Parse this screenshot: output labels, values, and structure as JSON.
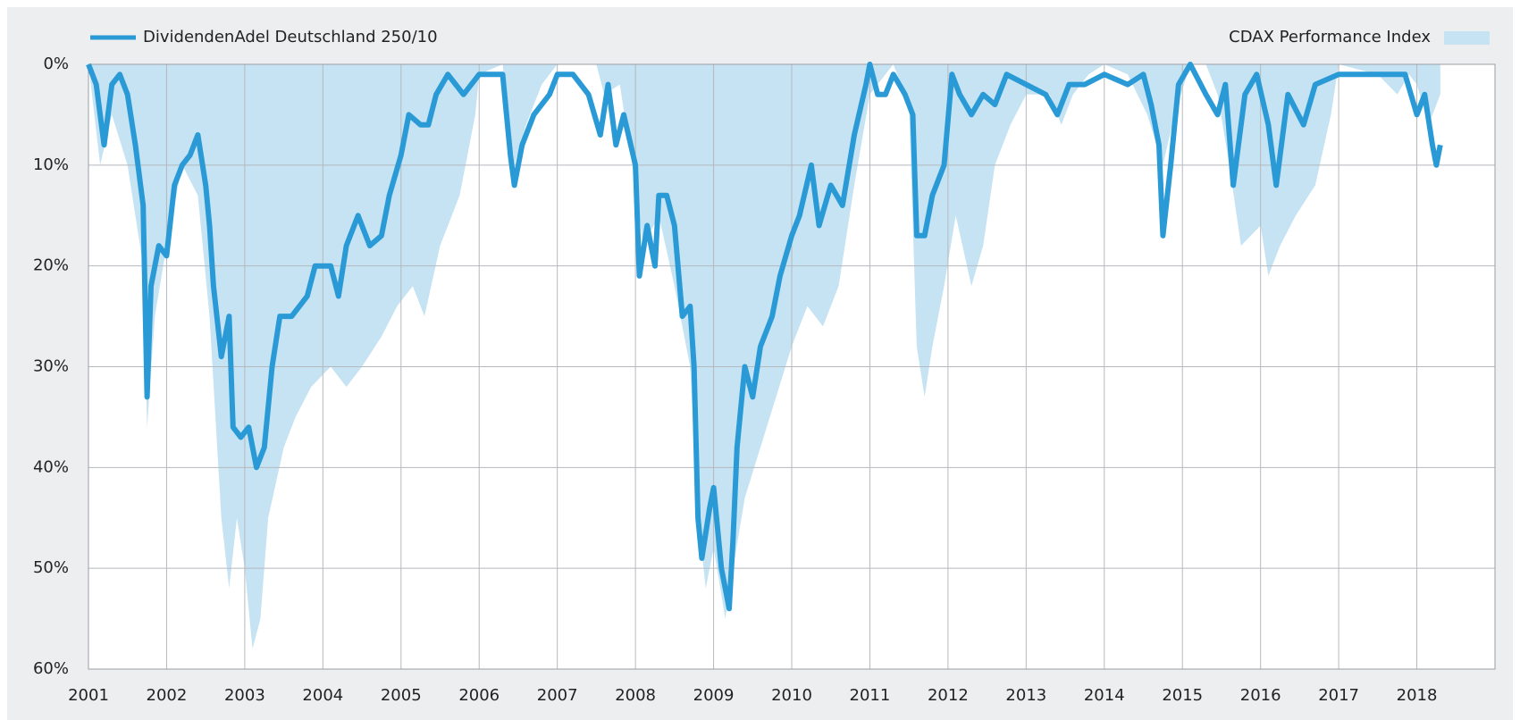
{
  "chart_data": {
    "type": "drawdown",
    "y_inverted": true,
    "grid": true,
    "xlim": [
      2001,
      2019
    ],
    "xticks": [
      2001,
      2002,
      2003,
      2004,
      2005,
      2006,
      2007,
      2008,
      2009,
      2010,
      2011,
      2012,
      2013,
      2014,
      2015,
      2016,
      2017,
      2018
    ],
    "ylim": [
      0,
      60
    ],
    "yticks": [
      {
        "value": 0,
        "label": "0%"
      },
      {
        "value": 10,
        "label": "10%"
      },
      {
        "value": 20,
        "label": "20%"
      },
      {
        "value": 30,
        "label": "30%"
      },
      {
        "value": 40,
        "label": "40%"
      },
      {
        "value": 50,
        "label": "50%"
      },
      {
        "value": 60,
        "label": "60%"
      }
    ],
    "series": [
      {
        "name": "DividendenAdel Deutschland 250/10",
        "kind": "line",
        "color": "#2a9ad6",
        "x": [
          2001.0,
          2001.1,
          2001.2,
          2001.3,
          2001.4,
          2001.5,
          2001.6,
          2001.7,
          2001.75,
          2001.8,
          2001.9,
          2002.0,
          2002.1,
          2002.2,
          2002.3,
          2002.4,
          2002.5,
          2002.55,
          2002.6,
          2002.7,
          2002.8,
          2002.85,
          2002.95,
          2003.05,
          2003.15,
          2003.25,
          2003.35,
          2003.45,
          2003.6,
          2003.8,
          2003.9,
          2004.1,
          2004.2,
          2004.3,
          2004.45,
          2004.6,
          2004.75,
          2004.85,
          2005.0,
          2005.1,
          2005.25,
          2005.35,
          2005.45,
          2005.6,
          2005.8,
          2006.0,
          2006.2,
          2006.3,
          2006.4,
          2006.45,
          2006.55,
          2006.7,
          2006.9,
          2007.0,
          2007.2,
          2007.4,
          2007.55,
          2007.65,
          2007.75,
          2007.85,
          2008.0,
          2008.05,
          2008.15,
          2008.25,
          2008.3,
          2008.4,
          2008.5,
          2008.6,
          2008.7,
          2008.75,
          2008.8,
          2008.85,
          2008.95,
          2009.0,
          2009.1,
          2009.2,
          2009.25,
          2009.3,
          2009.4,
          2009.5,
          2009.6,
          2009.75,
          2009.85,
          2010.0,
          2010.1,
          2010.25,
          2010.35,
          2010.5,
          2010.65,
          2010.8,
          2010.95,
          2011.0,
          2011.1,
          2011.2,
          2011.3,
          2011.45,
          2011.55,
          2011.6,
          2011.7,
          2011.8,
          2011.95,
          2012.05,
          2012.15,
          2012.3,
          2012.45,
          2012.6,
          2012.75,
          2013.0,
          2013.25,
          2013.4,
          2013.55,
          2013.75,
          2014.0,
          2014.3,
          2014.5,
          2014.6,
          2014.7,
          2014.75,
          2014.85,
          2014.95,
          2015.1,
          2015.3,
          2015.45,
          2015.55,
          2015.65,
          2015.8,
          2015.95,
          2016.1,
          2016.2,
          2016.35,
          2016.55,
          2016.7,
          2017.0,
          2017.3,
          2017.6,
          2017.85,
          2018.0,
          2018.1,
          2018.2,
          2018.25,
          2018.3
        ],
        "values": [
          0,
          2,
          8,
          2,
          1,
          3,
          8,
          14,
          33,
          22,
          18,
          19,
          12,
          10,
          9,
          7,
          12,
          16,
          22,
          29,
          25,
          36,
          37,
          36,
          40,
          38,
          30,
          25,
          25,
          23,
          20,
          20,
          23,
          18,
          15,
          18,
          17,
          13,
          9,
          5,
          6,
          6,
          3,
          1,
          3,
          1,
          1,
          1,
          9,
          12,
          8,
          5,
          3,
          1,
          1,
          3,
          7,
          2,
          8,
          5,
          10,
          21,
          16,
          20,
          13,
          13,
          16,
          25,
          24,
          30,
          45,
          49,
          44,
          42,
          50,
          54,
          47,
          38,
          30,
          33,
          28,
          25,
          21,
          17,
          15,
          10,
          16,
          12,
          14,
          7,
          2,
          0,
          3,
          3,
          1,
          3,
          5,
          17,
          17,
          13,
          10,
          1,
          3,
          5,
          3,
          4,
          1,
          2,
          3,
          5,
          2,
          2,
          1,
          2,
          1,
          4,
          8,
          17,
          10,
          2,
          0,
          3,
          5,
          2,
          12,
          3,
          1,
          6,
          12,
          3,
          6,
          2,
          1,
          1,
          1,
          1,
          5,
          3,
          8,
          10,
          8
        ]
      },
      {
        "name": "CDAX Performance Index",
        "kind": "area",
        "color": "#c5e3f3",
        "x": [
          2001.0,
          2001.15,
          2001.3,
          2001.5,
          2001.7,
          2001.75,
          2001.85,
          2002.0,
          2002.2,
          2002.4,
          2002.55,
          2002.7,
          2002.8,
          2002.9,
          2003.0,
          2003.1,
          2003.2,
          2003.3,
          2003.5,
          2003.65,
          2003.85,
          2004.1,
          2004.3,
          2004.5,
          2004.75,
          2004.95,
          2005.15,
          2005.3,
          2005.5,
          2005.75,
          2005.95,
          2006.0,
          2006.3,
          2006.45,
          2006.6,
          2006.8,
          2007.0,
          2007.5,
          2007.6,
          2007.8,
          2008.0,
          2008.1,
          2008.3,
          2008.5,
          2008.7,
          2008.8,
          2008.9,
          2009.0,
          2009.15,
          2009.25,
          2009.4,
          2009.6,
          2009.8,
          2010.0,
          2010.2,
          2010.4,
          2010.6,
          2010.8,
          2011.0,
          2011.3,
          2011.5,
          2011.6,
          2011.7,
          2011.8,
          2011.95,
          2012.1,
          2012.3,
          2012.45,
          2012.6,
          2012.8,
          2013.0,
          2013.3,
          2013.45,
          2013.6,
          2013.8,
          2014.0,
          2014.3,
          2014.55,
          2014.75,
          2014.9,
          2015.1,
          2015.3,
          2015.45,
          2015.6,
          2015.75,
          2016.0,
          2016.1,
          2016.25,
          2016.45,
          2016.7,
          2016.9,
          2017.0,
          2017.5,
          2017.75,
          2017.9,
          2018.0,
          2018.15,
          2018.3
        ],
        "values": [
          0,
          10,
          5,
          10,
          20,
          36,
          25,
          18,
          10,
          13,
          25,
          45,
          52,
          45,
          50,
          58,
          55,
          45,
          38,
          35,
          32,
          30,
          32,
          30,
          27,
          24,
          22,
          25,
          18,
          13,
          5,
          1,
          0,
          10,
          6,
          2,
          0,
          0,
          3,
          2,
          12,
          18,
          15,
          22,
          30,
          45,
          52,
          48,
          55,
          50,
          43,
          38,
          33,
          28,
          24,
          26,
          22,
          12,
          3,
          0,
          4,
          28,
          33,
          28,
          22,
          15,
          22,
          18,
          10,
          6,
          3,
          3,
          6,
          3,
          1,
          0,
          1,
          5,
          10,
          5,
          0,
          0,
          3,
          10,
          18,
          16,
          21,
          18,
          15,
          12,
          5,
          0,
          1,
          3,
          1,
          2,
          6,
          3
        ]
      }
    ]
  }
}
